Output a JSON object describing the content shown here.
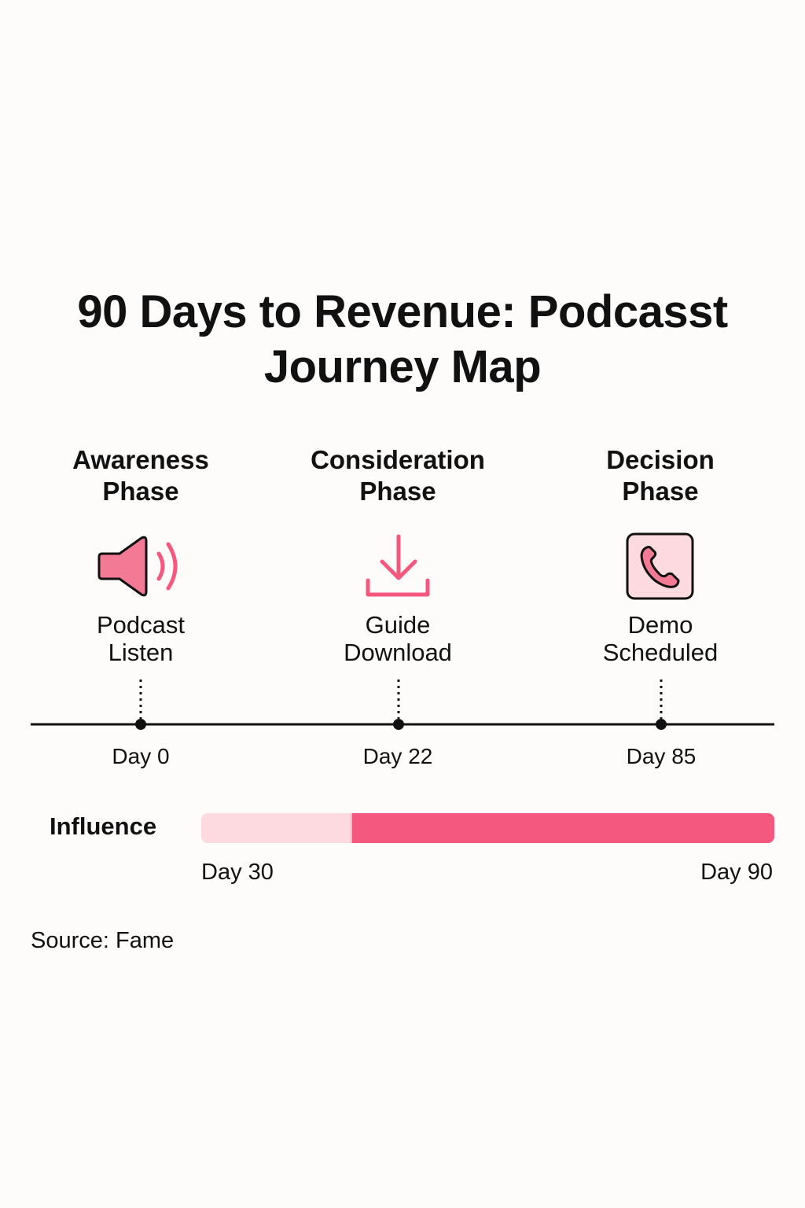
{
  "title": "90 Days to Revenue: Podcasst Journey Map",
  "phases": [
    {
      "title_line1": "Awareness",
      "title_line2": "Phase",
      "icon": "speaker-icon",
      "milestone_line1": "Podcast",
      "milestone_line2": "Listen",
      "day_label": "Day 0",
      "day": 0
    },
    {
      "title_line1": "Consideration",
      "title_line2": "Phase",
      "icon": "download-icon",
      "milestone_line1": "Guide",
      "milestone_line2": "Download",
      "day_label": "Day 22",
      "day": 22
    },
    {
      "title_line1": "Decision",
      "title_line2": "Phase",
      "icon": "phone-icon",
      "milestone_line1": "Demo",
      "milestone_line2": "Scheduled",
      "day_label": "Day 85",
      "day": 85
    }
  ],
  "influence": {
    "label": "Influence",
    "start_label": "Day 30",
    "end_label": "Day 90",
    "start_day": 30,
    "end_day": 90,
    "light_fraction": 0.26
  },
  "source": "Source: Fame",
  "colors": {
    "accent": "#f5587f",
    "accent_light": "#fdd9e0",
    "icon_fill": "#f27a95",
    "line": "#111111"
  }
}
